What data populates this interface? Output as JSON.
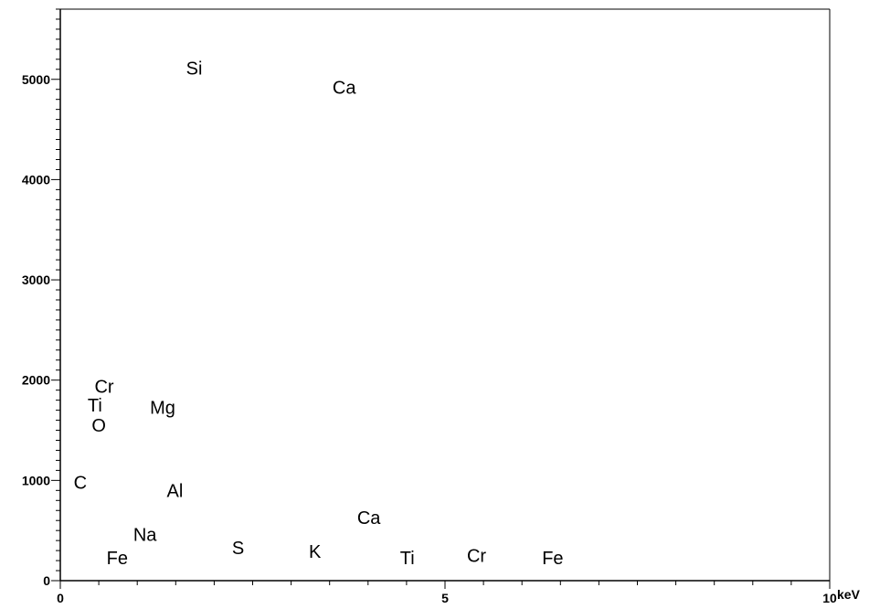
{
  "chart_data": {
    "type": "scatter",
    "title": "",
    "xlabel": "keV",
    "ylabel": "",
    "xlim": [
      0,
      10
    ],
    "ylim": [
      0,
      5700
    ],
    "x_ticks": [
      0,
      5,
      10
    ],
    "x_tick_labels": [
      "0",
      "5",
      "10"
    ],
    "y_ticks": [
      0,
      1000,
      2000,
      3000,
      4000,
      5000
    ],
    "y_tick_labels": [
      "0",
      "1000",
      "2000",
      "3000",
      "4000",
      "5000"
    ],
    "grid": false,
    "annotations": [
      {
        "text": "Si",
        "x": 1.74,
        "y": 5110
      },
      {
        "text": "Ca",
        "x": 3.69,
        "y": 4920
      },
      {
        "text": "Cr",
        "x": 0.57,
        "y": 1940
      },
      {
        "text": "Ti",
        "x": 0.45,
        "y": 1750
      },
      {
        "text": "Mg",
        "x": 1.33,
        "y": 1730
      },
      {
        "text": "O",
        "x": 0.5,
        "y": 1550
      },
      {
        "text": "C",
        "x": 0.26,
        "y": 980
      },
      {
        "text": "Al",
        "x": 1.49,
        "y": 900
      },
      {
        "text": "Ca",
        "x": 4.01,
        "y": 630
      },
      {
        "text": "Na",
        "x": 1.1,
        "y": 460
      },
      {
        "text": "S",
        "x": 2.31,
        "y": 330
      },
      {
        "text": "K",
        "x": 3.31,
        "y": 290
      },
      {
        "text": "Fe",
        "x": 0.74,
        "y": 230
      },
      {
        "text": "Ti",
        "x": 4.51,
        "y": 230
      },
      {
        "text": "Cr",
        "x": 5.41,
        "y": 250
      },
      {
        "text": "Fe",
        "x": 6.4,
        "y": 230
      }
    ]
  }
}
